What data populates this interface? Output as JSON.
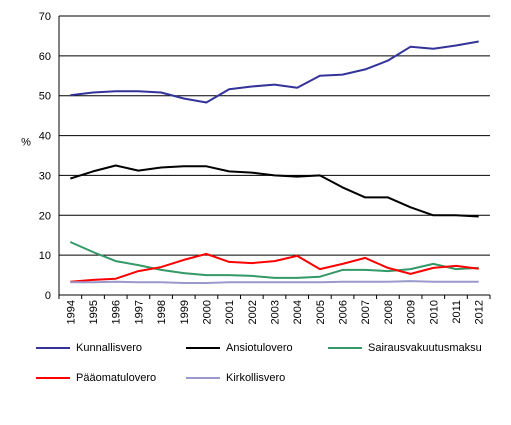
{
  "chart_data": {
    "type": "line",
    "title": "",
    "xlabel": "",
    "ylabel": "%",
    "ylim": [
      0,
      70
    ],
    "yticks": [
      "0",
      "10",
      "20",
      "30",
      "40",
      "50",
      "60",
      "70"
    ],
    "categories": [
      "1994",
      "1995",
      "1996",
      "1997",
      "1998",
      "1999",
      "2000",
      "2001",
      "2002",
      "2003",
      "2004",
      "2005",
      "2006",
      "2007",
      "2008",
      "2009",
      "2010",
      "2011",
      "2012"
    ],
    "grid": true,
    "legend_position": "bottom",
    "series": [
      {
        "name": "Kunnallisvero",
        "color": "#333399",
        "values": [
          50.1,
          50.8,
          51.1,
          51.1,
          50.8,
          49.3,
          48.3,
          51.6,
          52.3,
          52.8,
          52.0,
          55.0,
          55.3,
          56.6,
          58.8,
          62.3,
          61.8,
          62.6,
          63.6
        ]
      },
      {
        "name": "Ansiotulovero",
        "color": "#000000",
        "values": [
          29.2,
          31.0,
          32.5,
          31.2,
          32.0,
          32.3,
          32.3,
          31.0,
          30.7,
          30.0,
          29.7,
          30.0,
          27.0,
          24.5,
          24.5,
          22.0,
          20.0,
          20.0,
          19.7
        ]
      },
      {
        "name": "Sairausvakuutusmaksu",
        "color": "#339966",
        "values": [
          13.3,
          10.8,
          8.5,
          7.5,
          6.3,
          5.5,
          5.0,
          5.0,
          4.8,
          4.3,
          4.3,
          4.6,
          6.3,
          6.3,
          6.0,
          6.5,
          7.8,
          6.5,
          6.8
        ]
      },
      {
        "name": "Pääomatulovero",
        "color": "#ff0000",
        "values": [
          3.3,
          3.8,
          4.1,
          6.0,
          7.0,
          8.8,
          10.3,
          8.3,
          8.0,
          8.5,
          9.8,
          6.5,
          7.8,
          9.3,
          6.8,
          5.3,
          6.8,
          7.3,
          6.6
        ]
      },
      {
        "name": "Kirkollisvero",
        "color": "#9999cc",
        "values": [
          3.2,
          3.2,
          3.3,
          3.2,
          3.2,
          3.0,
          3.0,
          3.2,
          3.2,
          3.2,
          3.2,
          3.2,
          3.3,
          3.3,
          3.3,
          3.5,
          3.3,
          3.3,
          3.3
        ]
      }
    ]
  }
}
